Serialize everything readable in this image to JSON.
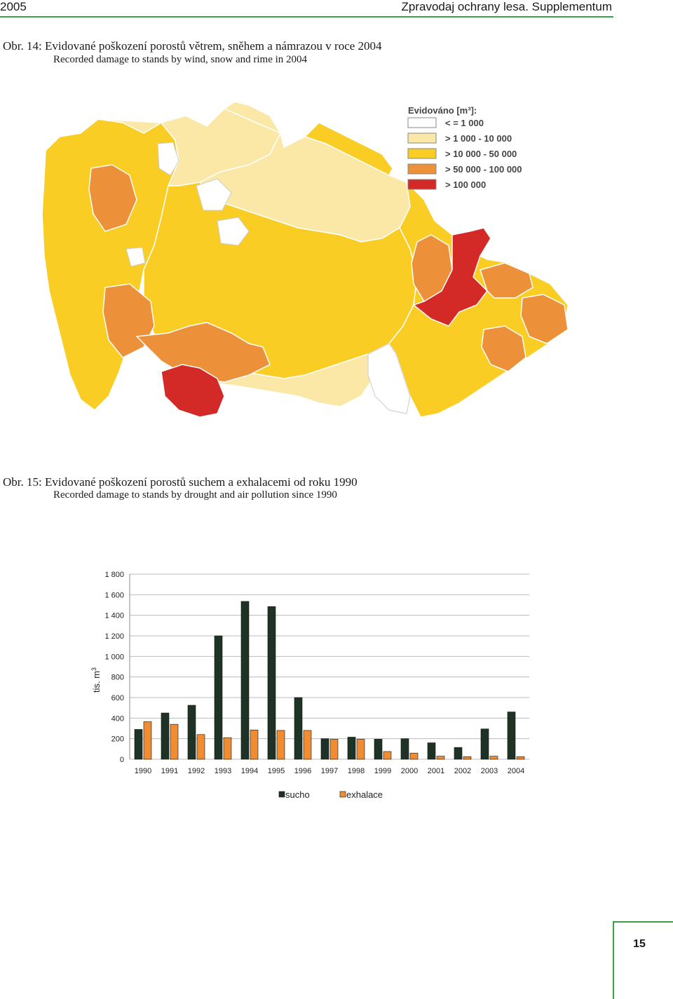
{
  "header": {
    "year": "2005",
    "journal": "Zpravodaj ochrany lesa. Supplementum"
  },
  "figure14": {
    "caption_cz": "Obr. 14: Evidované poškození porostů větrem, sněhem a námrazou v roce 2004",
    "caption_en": "Recorded damage to stands by wind, snow and rime in 2004",
    "legend_title": "Evidováno [m³]:",
    "legend": [
      {
        "label": "< = 1 000",
        "color": "#ffffff"
      },
      {
        "label": "> 1 000 - 10 000",
        "color": "#fbe8a6"
      },
      {
        "label": "> 10 000 - 50 000",
        "color": "#f9cd23"
      },
      {
        "label": "> 50 000 - 100 000",
        "color": "#ec913a"
      },
      {
        "label": "> 100 000",
        "color": "#d42a27"
      }
    ]
  },
  "figure15": {
    "caption_cz": "Obr. 15: Evidované poškození porostů suchem a exhalacemi od roku 1990",
    "caption_en": "Recorded damage to stands by drought and air pollution since 1990"
  },
  "chart_data": {
    "type": "bar",
    "ylabel": "tis. m",
    "ylabel_sup": "3",
    "ylim": [
      0,
      1800
    ],
    "yticks": [
      0,
      200,
      400,
      600,
      800,
      1000,
      1200,
      1400,
      1600,
      1800
    ],
    "ytick_labels": [
      "0",
      "200",
      "400",
      "600",
      "800",
      "1 000",
      "1 200",
      "1 400",
      "1 600",
      "1 800"
    ],
    "categories": [
      "1990",
      "1991",
      "1992",
      "1993",
      "1994",
      "1995",
      "1996",
      "1997",
      "1998",
      "1999",
      "2000",
      "2001",
      "2002",
      "2003",
      "2004"
    ],
    "series": [
      {
        "name": "sucho",
        "color": "#1e3325",
        "values": [
          290,
          450,
          525,
          1200,
          1535,
          1485,
          600,
          200,
          215,
          195,
          200,
          160,
          115,
          295,
          460
        ]
      },
      {
        "name": "exhalace",
        "color": "#f08c31",
        "values": [
          365,
          340,
          240,
          210,
          285,
          280,
          280,
          195,
          195,
          75,
          60,
          30,
          25,
          30,
          25
        ]
      }
    ],
    "grid": true,
    "legend_position": "bottom"
  },
  "footer": {
    "page_number": "15"
  }
}
